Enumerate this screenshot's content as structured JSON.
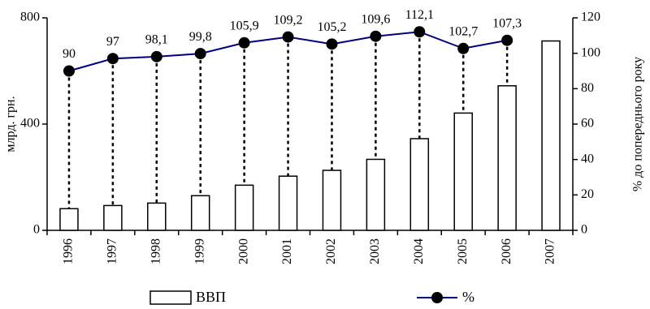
{
  "chart_data": {
    "type": "combo",
    "categories": [
      "1996",
      "1997",
      "1998",
      "1999",
      "2000",
      "2001",
      "2002",
      "2003",
      "2004",
      "2005",
      "2006",
      "2007"
    ],
    "series": [
      {
        "name": "ВВП",
        "type": "bar",
        "color": "#ffffff",
        "values": [
          81.5,
          93.4,
          102.6,
          130.4,
          170,
          204,
          225.8,
          267.3,
          345.1,
          441.5,
          544.2,
          712.9
        ]
      },
      {
        "name": "%",
        "type": "line",
        "axis": "y2",
        "color": "#000080",
        "values": [
          90,
          97,
          98.1,
          99.8,
          105.9,
          109.2,
          105.2,
          109.6,
          112.1,
          102.7,
          107.3,
          null
        ],
        "value_labels": [
          "90",
          "97",
          "98,1",
          "99,8",
          "105,9",
          "109,2",
          "105,2",
          "109,6",
          "112,1",
          "102,7",
          "107,3",
          null
        ]
      }
    ],
    "ylabel": "млрд. грн.",
    "y2label": "% до попереднього року",
    "ylim": [
      0,
      800
    ],
    "yticks": [
      0,
      400,
      800
    ],
    "y2lim": [
      0,
      120
    ],
    "y2ticks": [
      0,
      20,
      40,
      60,
      80,
      100,
      120
    ],
    "drop_lines": true,
    "legend": "bottom"
  }
}
